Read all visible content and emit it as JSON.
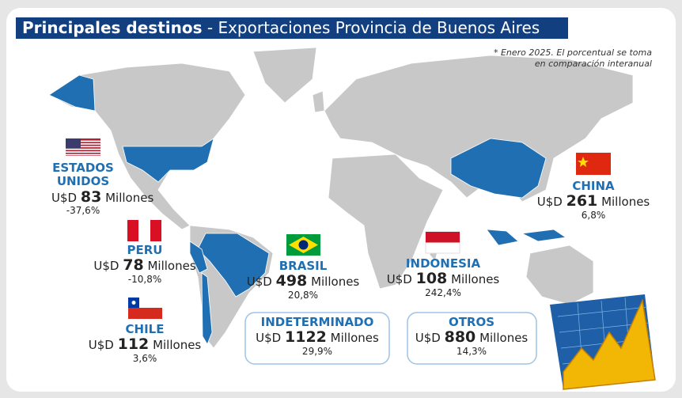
{
  "header": {
    "title_bold": "Principales destinos",
    "title_rest": "- Exportaciones Provincia de Buenos Aires"
  },
  "note": [
    "* Enero 2025. El porcentual se toma",
    "en comparación interanual"
  ],
  "currency": "U$D",
  "unit": "Millones",
  "destinations": [
    {
      "name": "ESTADOS UNIDOS",
      "value": 83,
      "change": "-37,6%"
    },
    {
      "name": "PERU",
      "value": 78,
      "change": "-10,8%"
    },
    {
      "name": "CHILE",
      "value": 112,
      "change": "3,6%"
    },
    {
      "name": "BRASIL",
      "value": 498,
      "change": "20,8%"
    },
    {
      "name": "INDONESIA",
      "value": 108,
      "change": "242,4%"
    },
    {
      "name": "CHINA",
      "value": 261,
      "change": "6,8%"
    },
    {
      "name": "INDETERMINADO",
      "value": 1122,
      "change": "29,9%"
    },
    {
      "name": "OTROS",
      "value": 880,
      "change": "14,3%"
    }
  ]
}
